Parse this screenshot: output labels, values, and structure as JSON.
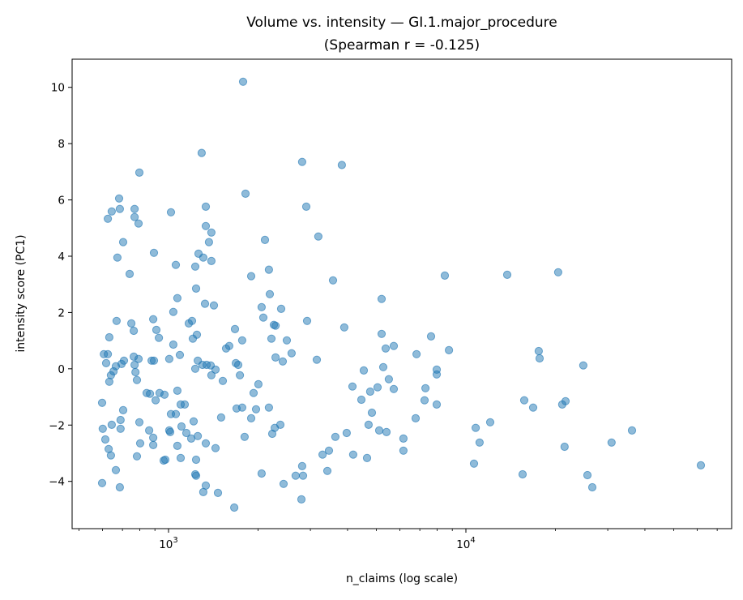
{
  "chart_data": {
    "type": "scatter",
    "title": "Volume vs. intensity — GI.1.major_procedure",
    "subtitle": "(Spearman r = -0.125)",
    "xlabel": "n_claims (log scale)",
    "ylabel": "intensity score (PC1)",
    "xscale": "log",
    "xlim": [
      474,
      78300
    ],
    "ylim": [
      -5.68,
      11.0
    ],
    "grid": false,
    "legend": "none",
    "color": "#1f77b4",
    "opacity": 0.5,
    "x_ticks": [
      {
        "value": 1000,
        "base": "10",
        "exp": "3"
      },
      {
        "value": 10000,
        "base": "10",
        "exp": "4"
      }
    ],
    "y_ticks": [
      -4,
      -2,
      0,
      2,
      4,
      6,
      8,
      10
    ],
    "points": [
      [
        798,
        6.97
      ],
      [
        682,
        6.05
      ],
      [
        644,
        5.59
      ],
      [
        686,
        5.68
      ],
      [
        625,
        5.33
      ],
      [
        769,
        5.68
      ],
      [
        769,
        5.39
      ],
      [
        793,
        5.16
      ],
      [
        1019,
        5.56
      ],
      [
        704,
        4.5
      ],
      [
        673,
        3.95
      ],
      [
        893,
        4.12
      ],
      [
        740,
        3.37
      ],
      [
        1058,
        3.69
      ],
      [
        1071,
        2.51
      ],
      [
        1038,
        2.02
      ],
      [
        669,
        1.7
      ],
      [
        750,
        1.61
      ],
      [
        764,
        1.35
      ],
      [
        888,
        1.76
      ],
      [
        910,
        1.38
      ],
      [
        928,
        1.1
      ],
      [
        632,
        1.12
      ],
      [
        1038,
        0.86
      ],
      [
        1092,
        0.49
      ],
      [
        606,
        0.52
      ],
      [
        625,
        0.52
      ],
      [
        617,
        0.2
      ],
      [
        665,
        0.09
      ],
      [
        653,
        -0.09
      ],
      [
        640,
        -0.23
      ],
      [
        632,
        -0.46
      ],
      [
        695,
        0.17
      ],
      [
        708,
        0.29
      ],
      [
        764,
        0.43
      ],
      [
        793,
        0.35
      ],
      [
        769,
        0.14
      ],
      [
        774,
        -0.12
      ],
      [
        783,
        -0.4
      ],
      [
        877,
        0.29
      ],
      [
        893,
        0.29
      ],
      [
        1006,
        0.35
      ],
      [
        1071,
        -0.78
      ],
      [
        844,
        -0.86
      ],
      [
        866,
        -0.89
      ],
      [
        905,
        -1.12
      ],
      [
        933,
        -0.86
      ],
      [
        969,
        -0.92
      ],
      [
        598,
        -1.21
      ],
      [
        1099,
        -1.27
      ],
      [
        1134,
        -1.27
      ],
      [
        704,
        -1.47
      ],
      [
        1019,
        -1.61
      ],
      [
        1058,
        -1.61
      ],
      [
        690,
        -1.82
      ],
      [
        690,
        -2.13
      ],
      [
        644,
        -1.99
      ],
      [
        601,
        -2.13
      ],
      [
        798,
        -1.9
      ],
      [
        1106,
        -2.05
      ],
      [
        861,
        -2.19
      ],
      [
        1006,
        -2.19
      ],
      [
        1013,
        -2.25
      ],
      [
        888,
        -2.45
      ],
      [
        888,
        -2.71
      ],
      [
        613,
        -2.51
      ],
      [
        803,
        -2.65
      ],
      [
        629,
        -2.85
      ],
      [
        640,
        -3.08
      ],
      [
        1071,
        -2.74
      ],
      [
        783,
        -3.11
      ],
      [
        963,
        -3.26
      ],
      [
        975,
        -3.23
      ],
      [
        1099,
        -3.17
      ],
      [
        665,
        -3.6
      ],
      [
        598,
        -4.06
      ],
      [
        686,
        -4.21
      ],
      [
        1781,
        10.2
      ],
      [
        1293,
        7.67
      ],
      [
        1815,
        6.22
      ],
      [
        1335,
        5.76
      ],
      [
        1335,
        5.07
      ],
      [
        1394,
        4.84
      ],
      [
        1368,
        4.5
      ],
      [
        2110,
        4.58
      ],
      [
        1261,
        4.09
      ],
      [
        1309,
        3.95
      ],
      [
        1394,
        3.83
      ],
      [
        1230,
        3.63
      ],
      [
        1897,
        3.29
      ],
      [
        1238,
        2.85
      ],
      [
        1326,
        2.31
      ],
      [
        1421,
        2.25
      ],
      [
        2057,
        2.19
      ],
      [
        2084,
        1.82
      ],
      [
        1170,
        1.61
      ],
      [
        1200,
        1.7
      ],
      [
        1673,
        1.41
      ],
      [
        1246,
        1.21
      ],
      [
        1207,
        1.07
      ],
      [
        1769,
        1.01
      ],
      [
        1600,
        0.81
      ],
      [
        1561,
        0.72
      ],
      [
        1254,
        0.29
      ],
      [
        1230,
        0.0
      ],
      [
        1301,
        0.14
      ],
      [
        1343,
        0.14
      ],
      [
        1386,
        0.12
      ],
      [
        1439,
        -0.03
      ],
      [
        1394,
        -0.23
      ],
      [
        1523,
        -0.43
      ],
      [
        1684,
        0.2
      ],
      [
        1715,
        0.14
      ],
      [
        1738,
        -0.23
      ],
      [
        2006,
        -0.55
      ],
      [
        1932,
        -0.86
      ],
      [
        1148,
        -2.28
      ],
      [
        1694,
        -1.41
      ],
      [
        1769,
        -1.38
      ],
      [
        1969,
        -1.44
      ],
      [
        1897,
        -1.76
      ],
      [
        1503,
        -1.73
      ],
      [
        1215,
        -1.87
      ],
      [
        1192,
        -2.48
      ],
      [
        1254,
        -2.39
      ],
      [
        1335,
        -2.65
      ],
      [
        1439,
        -2.82
      ],
      [
        1803,
        -2.42
      ],
      [
        1238,
        -3.23
      ],
      [
        1230,
        -3.75
      ],
      [
        1238,
        -3.8
      ],
      [
        2057,
        -3.72
      ],
      [
        1335,
        -4.15
      ],
      [
        1309,
        -4.38
      ],
      [
        1466,
        -4.41
      ],
      [
        1663,
        -4.93
      ],
      [
        2815,
        7.35
      ],
      [
        3828,
        7.24
      ],
      [
        2905,
        5.76
      ],
      [
        3191,
        4.7
      ],
      [
        2176,
        3.52
      ],
      [
        3574,
        3.14
      ],
      [
        8493,
        3.31
      ],
      [
        2191,
        2.65
      ],
      [
        5208,
        2.48
      ],
      [
        2392,
        2.13
      ],
      [
        2261,
        1.56
      ],
      [
        2291,
        1.53
      ],
      [
        2924,
        1.7
      ],
      [
        3900,
        1.47
      ],
      [
        5208,
        1.24
      ],
      [
        2218,
        1.07
      ],
      [
        2500,
        1.01
      ],
      [
        7637,
        1.15
      ],
      [
        5374,
        0.72
      ],
      [
        5722,
        0.81
      ],
      [
        8770,
        0.66
      ],
      [
        2291,
        0.4
      ],
      [
        2594,
        0.55
      ],
      [
        2422,
        0.26
      ],
      [
        3152,
        0.32
      ],
      [
        6823,
        0.52
      ],
      [
        4535,
        -0.06
      ],
      [
        5273,
        0.06
      ],
      [
        7980,
        -0.03
      ],
      [
        7980,
        -0.2
      ],
      [
        5508,
        -0.37
      ],
      [
        4155,
        -0.63
      ],
      [
        5048,
        -0.66
      ],
      [
        4766,
        -0.81
      ],
      [
        5722,
        -0.72
      ],
      [
        4452,
        -1.1
      ],
      [
        7311,
        -0.69
      ],
      [
        7262,
        -1.12
      ],
      [
        7980,
        -1.27
      ],
      [
        2176,
        -1.38
      ],
      [
        4831,
        -1.56
      ],
      [
        6776,
        -1.76
      ],
      [
        2377,
        -1.99
      ],
      [
        2276,
        -2.1
      ],
      [
        2233,
        -2.31
      ],
      [
        4707,
        -1.99
      ],
      [
        5111,
        -2.19
      ],
      [
        5408,
        -2.25
      ],
      [
        3975,
        -2.28
      ],
      [
        3640,
        -2.42
      ],
      [
        6166,
        -2.48
      ],
      [
        3463,
        -2.91
      ],
      [
        3296,
        -3.05
      ],
      [
        4178,
        -3.05
      ],
      [
        4652,
        -3.17
      ],
      [
        6166,
        -2.91
      ],
      [
        2815,
        -3.46
      ],
      [
        2677,
        -3.8
      ],
      [
        2833,
        -3.8
      ],
      [
        3420,
        -3.63
      ],
      [
        2437,
        -4.09
      ],
      [
        2798,
        -4.64
      ],
      [
        13770,
        3.34
      ],
      [
        20440,
        3.43
      ],
      [
        17580,
        0.63
      ],
      [
        17700,
        0.37
      ],
      [
        24830,
        0.12
      ],
      [
        15710,
        -1.12
      ],
      [
        16830,
        -1.38
      ],
      [
        21640,
        -1.15
      ],
      [
        21090,
        -1.27
      ],
      [
        12070,
        -1.9
      ],
      [
        10790,
        -2.1
      ],
      [
        11120,
        -2.62
      ],
      [
        21480,
        -2.77
      ],
      [
        30900,
        -2.62
      ],
      [
        36200,
        -2.19
      ],
      [
        10650,
        -3.37
      ],
      [
        15520,
        -3.75
      ],
      [
        25630,
        -3.78
      ],
      [
        26620,
        -4.21
      ],
      [
        61700,
        -3.43
      ]
    ]
  }
}
